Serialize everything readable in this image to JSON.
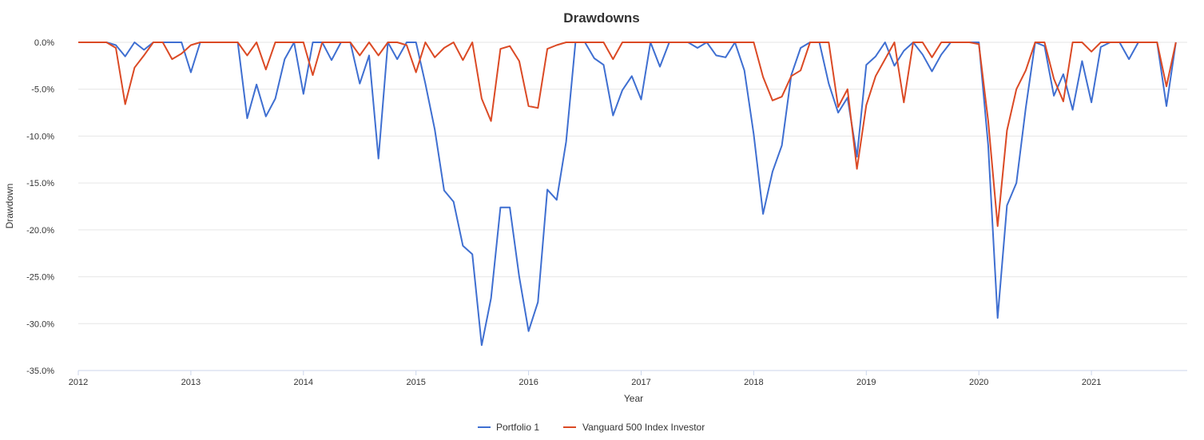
{
  "chart_data": {
    "type": "line",
    "title": "Drawdowns",
    "xlabel": "Year",
    "ylabel": "Drawdown",
    "ylim": [
      -35,
      0
    ],
    "yticks": [
      "0.0%",
      "-5.0%",
      "-10.0%",
      "-15.0%",
      "-20.0%",
      "-25.0%",
      "-30.0%",
      "-35.0%"
    ],
    "xticks": [
      "2012",
      "2013",
      "2014",
      "2015",
      "2016",
      "2017",
      "2018",
      "2019",
      "2020",
      "2021"
    ],
    "x_start": "2012-01",
    "x_end": "2021-12",
    "grid": true,
    "legend_position": "bottom-center",
    "series": [
      {
        "name": "Portfolio 1",
        "color": "#3f6fd1",
        "points": [
          [
            "2012-01",
            0
          ],
          [
            "2012-02",
            0
          ],
          [
            "2012-03",
            0
          ],
          [
            "2012-04",
            0
          ],
          [
            "2012-05",
            -0.3
          ],
          [
            "2012-06",
            -1.5
          ],
          [
            "2012-07",
            0
          ],
          [
            "2012-08",
            -0.8
          ],
          [
            "2012-09",
            0
          ],
          [
            "2012-10",
            0
          ],
          [
            "2012-11",
            0
          ],
          [
            "2012-12",
            0
          ],
          [
            "2013-01",
            -3.2
          ],
          [
            "2013-02",
            0
          ],
          [
            "2013-03",
            0
          ],
          [
            "2013-04",
            0
          ],
          [
            "2013-05",
            0
          ],
          [
            "2013-06",
            0
          ],
          [
            "2013-07",
            -8.1
          ],
          [
            "2013-08",
            -4.5
          ],
          [
            "2013-09",
            -7.9
          ],
          [
            "2013-10",
            -6.0
          ],
          [
            "2013-11",
            -1.8
          ],
          [
            "2013-12",
            0
          ],
          [
            "2014-01",
            -5.5
          ],
          [
            "2014-02",
            0
          ],
          [
            "2014-03",
            0
          ],
          [
            "2014-04",
            -1.9
          ],
          [
            "2014-05",
            0
          ],
          [
            "2014-06",
            0
          ],
          [
            "2014-07",
            -4.4
          ],
          [
            "2014-08",
            -1.4
          ],
          [
            "2014-09",
            -12.4
          ],
          [
            "2014-10",
            0
          ],
          [
            "2014-11",
            -1.8
          ],
          [
            "2014-12",
            0
          ],
          [
            "2015-01",
            0
          ],
          [
            "2015-02",
            -4.4
          ],
          [
            "2015-03",
            -9.3
          ],
          [
            "2015-04",
            -15.8
          ],
          [
            "2015-05",
            -17.0
          ],
          [
            "2015-06",
            -21.7
          ],
          [
            "2015-07",
            -22.6
          ],
          [
            "2015-08",
            -32.3
          ],
          [
            "2015-09",
            -27.3
          ],
          [
            "2015-10",
            -17.6
          ],
          [
            "2015-11",
            -17.6
          ],
          [
            "2015-12",
            -25.0
          ],
          [
            "2016-01",
            -30.8
          ],
          [
            "2016-02",
            -27.7
          ],
          [
            "2016-03",
            -15.7
          ],
          [
            "2016-04",
            -16.8
          ],
          [
            "2016-05",
            -10.6
          ],
          [
            "2016-06",
            0
          ],
          [
            "2016-07",
            0
          ],
          [
            "2016-08",
            -1.7
          ],
          [
            "2016-09",
            -2.4
          ],
          [
            "2016-10",
            -7.8
          ],
          [
            "2016-11",
            -5.1
          ],
          [
            "2016-12",
            -3.6
          ],
          [
            "2017-01",
            -6.1
          ],
          [
            "2017-02",
            0
          ],
          [
            "2017-03",
            -2.6
          ],
          [
            "2017-04",
            0
          ],
          [
            "2017-05",
            0
          ],
          [
            "2017-06",
            0
          ],
          [
            "2017-07",
            -0.6
          ],
          [
            "2017-08",
            0
          ],
          [
            "2017-09",
            -1.4
          ],
          [
            "2017-10",
            -1.6
          ],
          [
            "2017-11",
            0
          ],
          [
            "2017-12",
            -3.0
          ],
          [
            "2018-01",
            -9.8
          ],
          [
            "2018-02",
            -18.3
          ],
          [
            "2018-03",
            -13.8
          ],
          [
            "2018-04",
            -11.0
          ],
          [
            "2018-05",
            -3.5
          ],
          [
            "2018-06",
            -0.6
          ],
          [
            "2018-07",
            0
          ],
          [
            "2018-08",
            0
          ],
          [
            "2018-09",
            -4.4
          ],
          [
            "2018-10",
            -7.5
          ],
          [
            "2018-11",
            -5.9
          ],
          [
            "2018-12",
            -12.2
          ],
          [
            "2019-01",
            -2.4
          ],
          [
            "2019-02",
            -1.5
          ],
          [
            "2019-03",
            0
          ],
          [
            "2019-04",
            -2.5
          ],
          [
            "2019-05",
            -0.9
          ],
          [
            "2019-06",
            0
          ],
          [
            "2019-07",
            -1.3
          ],
          [
            "2019-08",
            -3.1
          ],
          [
            "2019-09",
            -1.3
          ],
          [
            "2019-10",
            0
          ],
          [
            "2019-11",
            0
          ],
          [
            "2019-12",
            0
          ],
          [
            "2020-01",
            0
          ],
          [
            "2020-02",
            -11.0
          ],
          [
            "2020-03",
            -29.4
          ],
          [
            "2020-04",
            -17.4
          ],
          [
            "2020-05",
            -15.0
          ],
          [
            "2020-06",
            -7.0
          ],
          [
            "2020-07",
            0
          ],
          [
            "2020-08",
            -0.4
          ],
          [
            "2020-09",
            -5.7
          ],
          [
            "2020-10",
            -3.4
          ],
          [
            "2020-11",
            -7.2
          ],
          [
            "2020-12",
            -2.0
          ],
          [
            "2021-01",
            -6.4
          ],
          [
            "2021-02",
            -0.5
          ],
          [
            "2021-03",
            0
          ],
          [
            "2021-04",
            0
          ],
          [
            "2021-05",
            -1.8
          ],
          [
            "2021-06",
            0
          ],
          [
            "2021-07",
            0
          ],
          [
            "2021-08",
            0
          ],
          [
            "2021-09",
            -6.8
          ],
          [
            "2021-10",
            0
          ]
        ]
      },
      {
        "name": "Vanguard 500 Index Investor",
        "color": "#db4a25",
        "points": [
          [
            "2012-01",
            0
          ],
          [
            "2012-02",
            0
          ],
          [
            "2012-03",
            0
          ],
          [
            "2012-04",
            0
          ],
          [
            "2012-05",
            -0.6
          ],
          [
            "2012-06",
            -6.6
          ],
          [
            "2012-07",
            -2.7
          ],
          [
            "2012-08",
            -1.4
          ],
          [
            "2012-09",
            0
          ],
          [
            "2012-10",
            0
          ],
          [
            "2012-11",
            -1.8
          ],
          [
            "2012-12",
            -1.2
          ],
          [
            "2013-01",
            -0.3
          ],
          [
            "2013-02",
            0
          ],
          [
            "2013-03",
            0
          ],
          [
            "2013-04",
            0
          ],
          [
            "2013-05",
            0
          ],
          [
            "2013-06",
            0
          ],
          [
            "2013-07",
            -1.4
          ],
          [
            "2013-08",
            0
          ],
          [
            "2013-09",
            -2.9
          ],
          [
            "2013-10",
            0
          ],
          [
            "2013-11",
            0
          ],
          [
            "2013-12",
            0
          ],
          [
            "2014-01",
            0
          ],
          [
            "2014-02",
            -3.5
          ],
          [
            "2014-03",
            0
          ],
          [
            "2014-04",
            0
          ],
          [
            "2014-05",
            0
          ],
          [
            "2014-06",
            0
          ],
          [
            "2014-07",
            -1.4
          ],
          [
            "2014-08",
            0
          ],
          [
            "2014-09",
            -1.4
          ],
          [
            "2014-10",
            0
          ],
          [
            "2014-11",
            0
          ],
          [
            "2014-12",
            -0.3
          ],
          [
            "2015-01",
            -3.2
          ],
          [
            "2015-02",
            0
          ],
          [
            "2015-03",
            -1.6
          ],
          [
            "2015-04",
            -0.6
          ],
          [
            "2015-05",
            0
          ],
          [
            "2015-06",
            -1.9
          ],
          [
            "2015-07",
            0
          ],
          [
            "2015-08",
            -6.0
          ],
          [
            "2015-09",
            -8.4
          ],
          [
            "2015-10",
            -0.7
          ],
          [
            "2015-11",
            -0.4
          ],
          [
            "2015-12",
            -2.0
          ],
          [
            "2016-01",
            -6.8
          ],
          [
            "2016-02",
            -7.0
          ],
          [
            "2016-03",
            -0.7
          ],
          [
            "2016-04",
            -0.3
          ],
          [
            "2016-05",
            0
          ],
          [
            "2016-06",
            0
          ],
          [
            "2016-07",
            0
          ],
          [
            "2016-08",
            0
          ],
          [
            "2016-09",
            0
          ],
          [
            "2016-10",
            -1.8
          ],
          [
            "2016-11",
            0
          ],
          [
            "2016-12",
            0
          ],
          [
            "2017-01",
            0
          ],
          [
            "2017-02",
            0
          ],
          [
            "2017-03",
            0
          ],
          [
            "2017-04",
            0
          ],
          [
            "2017-05",
            0
          ],
          [
            "2017-06",
            0
          ],
          [
            "2017-07",
            0
          ],
          [
            "2017-08",
            0
          ],
          [
            "2017-09",
            0
          ],
          [
            "2017-10",
            0
          ],
          [
            "2017-11",
            0
          ],
          [
            "2017-12",
            0
          ],
          [
            "2018-01",
            0
          ],
          [
            "2018-02",
            -3.7
          ],
          [
            "2018-03",
            -6.2
          ],
          [
            "2018-04",
            -5.8
          ],
          [
            "2018-05",
            -3.6
          ],
          [
            "2018-06",
            -3.0
          ],
          [
            "2018-07",
            0
          ],
          [
            "2018-08",
            0
          ],
          [
            "2018-09",
            0
          ],
          [
            "2018-10",
            -6.9
          ],
          [
            "2018-11",
            -5.0
          ],
          [
            "2018-12",
            -13.5
          ],
          [
            "2019-01",
            -6.7
          ],
          [
            "2019-02",
            -3.6
          ],
          [
            "2019-03",
            -1.8
          ],
          [
            "2019-04",
            0
          ],
          [
            "2019-05",
            -6.4
          ],
          [
            "2019-06",
            0
          ],
          [
            "2019-07",
            0
          ],
          [
            "2019-08",
            -1.6
          ],
          [
            "2019-09",
            0
          ],
          [
            "2019-10",
            0
          ],
          [
            "2019-11",
            0
          ],
          [
            "2019-12",
            0
          ],
          [
            "2020-01",
            -0.2
          ],
          [
            "2020-02",
            -8.4
          ],
          [
            "2020-03",
            -19.6
          ],
          [
            "2020-04",
            -9.4
          ],
          [
            "2020-05",
            -5.0
          ],
          [
            "2020-06",
            -3.0
          ],
          [
            "2020-07",
            0
          ],
          [
            "2020-08",
            0
          ],
          [
            "2020-09",
            -3.9
          ],
          [
            "2020-10",
            -6.3
          ],
          [
            "2020-11",
            0
          ],
          [
            "2020-12",
            0
          ],
          [
            "2021-01",
            -1.0
          ],
          [
            "2021-02",
            0
          ],
          [
            "2021-03",
            0
          ],
          [
            "2021-04",
            0
          ],
          [
            "2021-05",
            0
          ],
          [
            "2021-06",
            0
          ],
          [
            "2021-07",
            0
          ],
          [
            "2021-08",
            0
          ],
          [
            "2021-09",
            -4.7
          ],
          [
            "2021-10",
            0
          ]
        ]
      }
    ]
  }
}
